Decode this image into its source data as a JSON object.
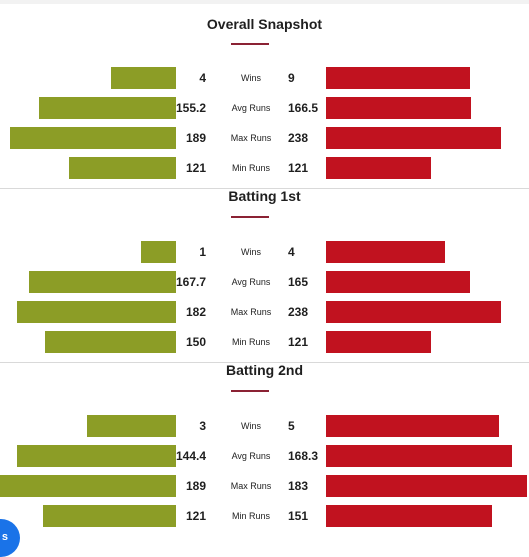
{
  "colors": {
    "team_left": "#8c9d26",
    "team_right": "#c1121f",
    "accent": "#8b2234"
  },
  "scale_max_width": 175,
  "sections": [
    {
      "title": "Overall Snapshot",
      "rows": [
        {
          "label": "Wins",
          "left": "4",
          "right": "9",
          "left_frac": 0.37,
          "right_frac": 0.82
        },
        {
          "label": "Avg Runs",
          "left": "155.2",
          "right": "166.5",
          "left_frac": 0.78,
          "right_frac": 0.83
        },
        {
          "label": "Max Runs",
          "left": "189",
          "right": "238",
          "left_frac": 0.95,
          "right_frac": 1.0
        },
        {
          "label": "Min Runs",
          "left": "121",
          "right": "121",
          "left_frac": 0.61,
          "right_frac": 0.6
        }
      ]
    },
    {
      "title": "Batting 1st",
      "rows": [
        {
          "label": "Wins",
          "left": "1",
          "right": "4",
          "left_frac": 0.2,
          "right_frac": 0.68
        },
        {
          "label": "Avg Runs",
          "left": "167.7",
          "right": "165",
          "left_frac": 0.84,
          "right_frac": 0.82
        },
        {
          "label": "Max Runs",
          "left": "182",
          "right": "238",
          "left_frac": 0.91,
          "right_frac": 1.0
        },
        {
          "label": "Min Runs",
          "left": "150",
          "right": "121",
          "left_frac": 0.75,
          "right_frac": 0.6
        }
      ]
    },
    {
      "title": "Batting 2nd",
      "rows": [
        {
          "label": "Wins",
          "left": "3",
          "right": "5",
          "left_frac": 0.51,
          "right_frac": 0.99
        },
        {
          "label": "Avg Runs",
          "left": "144.4",
          "right": "168.3",
          "left_frac": 0.91,
          "right_frac": 1.06
        },
        {
          "label": "Max Runs",
          "left": "189",
          "right": "183",
          "left_frac": 1.1,
          "right_frac": 1.15
        },
        {
          "label": "Min Runs",
          "left": "121",
          "right": "151",
          "left_frac": 0.76,
          "right_frac": 0.95
        }
      ]
    }
  ],
  "fab": {
    "icon": "chat-icon",
    "label": "s"
  }
}
